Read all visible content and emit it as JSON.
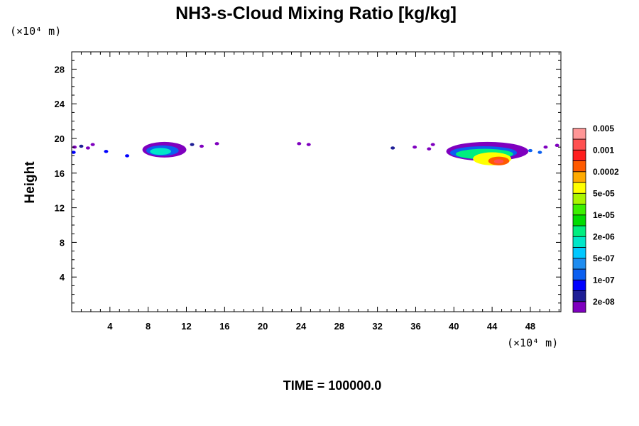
{
  "chart_data": {
    "type": "heatmap",
    "title": "NH3-s-Cloud Mixing Ratio [kg/kg]",
    "xlabel": "",
    "ylabel": "Height",
    "x_unit": "(×10⁴ m)",
    "y_unit": "(×10⁴ m)",
    "xlim": [
      0,
      51.2
    ],
    "ylim": [
      0,
      30
    ],
    "x_ticks": [
      4,
      8,
      12,
      16,
      20,
      24,
      28,
      32,
      36,
      40,
      44,
      48
    ],
    "y_ticks": [
      4,
      8,
      12,
      16,
      20,
      24,
      28
    ],
    "x_tick_labels": [
      "4",
      "8",
      "12",
      "16",
      "20",
      "24",
      "28",
      "32",
      "36",
      "40",
      "44",
      "48"
    ],
    "y_tick_labels": [
      "4",
      "8",
      "12",
      "16",
      "20",
      "24",
      "28"
    ],
    "grid": false,
    "colorbar": {
      "placement": "right",
      "colors": [
        "#7f00bf",
        "#1e1e96",
        "#0000ff",
        "#0b5ff0",
        "#1e8cf0",
        "#00c8ff",
        "#00e6c8",
        "#00ee7f",
        "#00dc00",
        "#3cf000",
        "#aaf500",
        "#ffff00",
        "#ffaa00",
        "#ff5a00",
        "#ff1e1e",
        "#ff5050",
        "#ff9696"
      ],
      "labels": [
        "2e-08",
        "1e-07",
        "5e-07",
        "2e-06",
        "1e-05",
        "5e-05",
        "0.0002",
        "0.001",
        "0.005"
      ]
    },
    "regions": [
      {
        "x0": 7.4,
        "x1": 12.0,
        "y0": 17.8,
        "y1": 19.6,
        "level": 0
      },
      {
        "x0": 7.8,
        "x1": 11.2,
        "y0": 18.0,
        "y1": 19.2,
        "level": 3
      },
      {
        "x0": 8.2,
        "x1": 10.4,
        "y0": 18.1,
        "y1": 18.9,
        "level": 6
      },
      {
        "x0": 39.2,
        "x1": 47.8,
        "y0": 17.4,
        "y1": 19.6,
        "level": 0
      },
      {
        "x0": 39.6,
        "x1": 46.6,
        "y0": 17.6,
        "y1": 19.1,
        "level": 3
      },
      {
        "x0": 40.2,
        "x1": 46.2,
        "y0": 17.6,
        "y1": 18.8,
        "level": 7
      },
      {
        "x0": 42.0,
        "x1": 46.0,
        "y0": 16.9,
        "y1": 18.4,
        "level": 11
      },
      {
        "x0": 43.6,
        "x1": 45.8,
        "y0": 16.9,
        "y1": 17.9,
        "level": 13
      },
      {
        "x0": 44.2,
        "x1": 45.2,
        "y0": 17.1,
        "y1": 17.6,
        "level": 15
      }
    ],
    "specks": [
      {
        "x": 0.3,
        "y": 19.0,
        "level": 0
      },
      {
        "x": 1.0,
        "y": 19.1,
        "level": 1
      },
      {
        "x": 1.7,
        "y": 18.9,
        "level": 0
      },
      {
        "x": 0.2,
        "y": 18.4,
        "level": 2
      },
      {
        "x": 2.2,
        "y": 19.3,
        "level": 0
      },
      {
        "x": 3.6,
        "y": 18.5,
        "level": 2
      },
      {
        "x": 5.8,
        "y": 18.0,
        "level": 2
      },
      {
        "x": 12.6,
        "y": 19.3,
        "level": 1
      },
      {
        "x": 13.6,
        "y": 19.1,
        "level": 0
      },
      {
        "x": 15.2,
        "y": 19.4,
        "level": 0
      },
      {
        "x": 23.8,
        "y": 19.4,
        "level": 0
      },
      {
        "x": 24.8,
        "y": 19.3,
        "level": 0
      },
      {
        "x": 33.6,
        "y": 18.9,
        "level": 1
      },
      {
        "x": 35.9,
        "y": 19.0,
        "level": 0
      },
      {
        "x": 37.4,
        "y": 18.8,
        "level": 0
      },
      {
        "x": 37.8,
        "y": 19.3,
        "level": 0
      },
      {
        "x": 48.0,
        "y": 18.6,
        "level": 3
      },
      {
        "x": 49.0,
        "y": 18.4,
        "level": 3
      },
      {
        "x": 49.6,
        "y": 19.0,
        "level": 0
      },
      {
        "x": 50.8,
        "y": 19.2,
        "level": 0
      }
    ]
  },
  "time_label": "TIME = 100000.0"
}
